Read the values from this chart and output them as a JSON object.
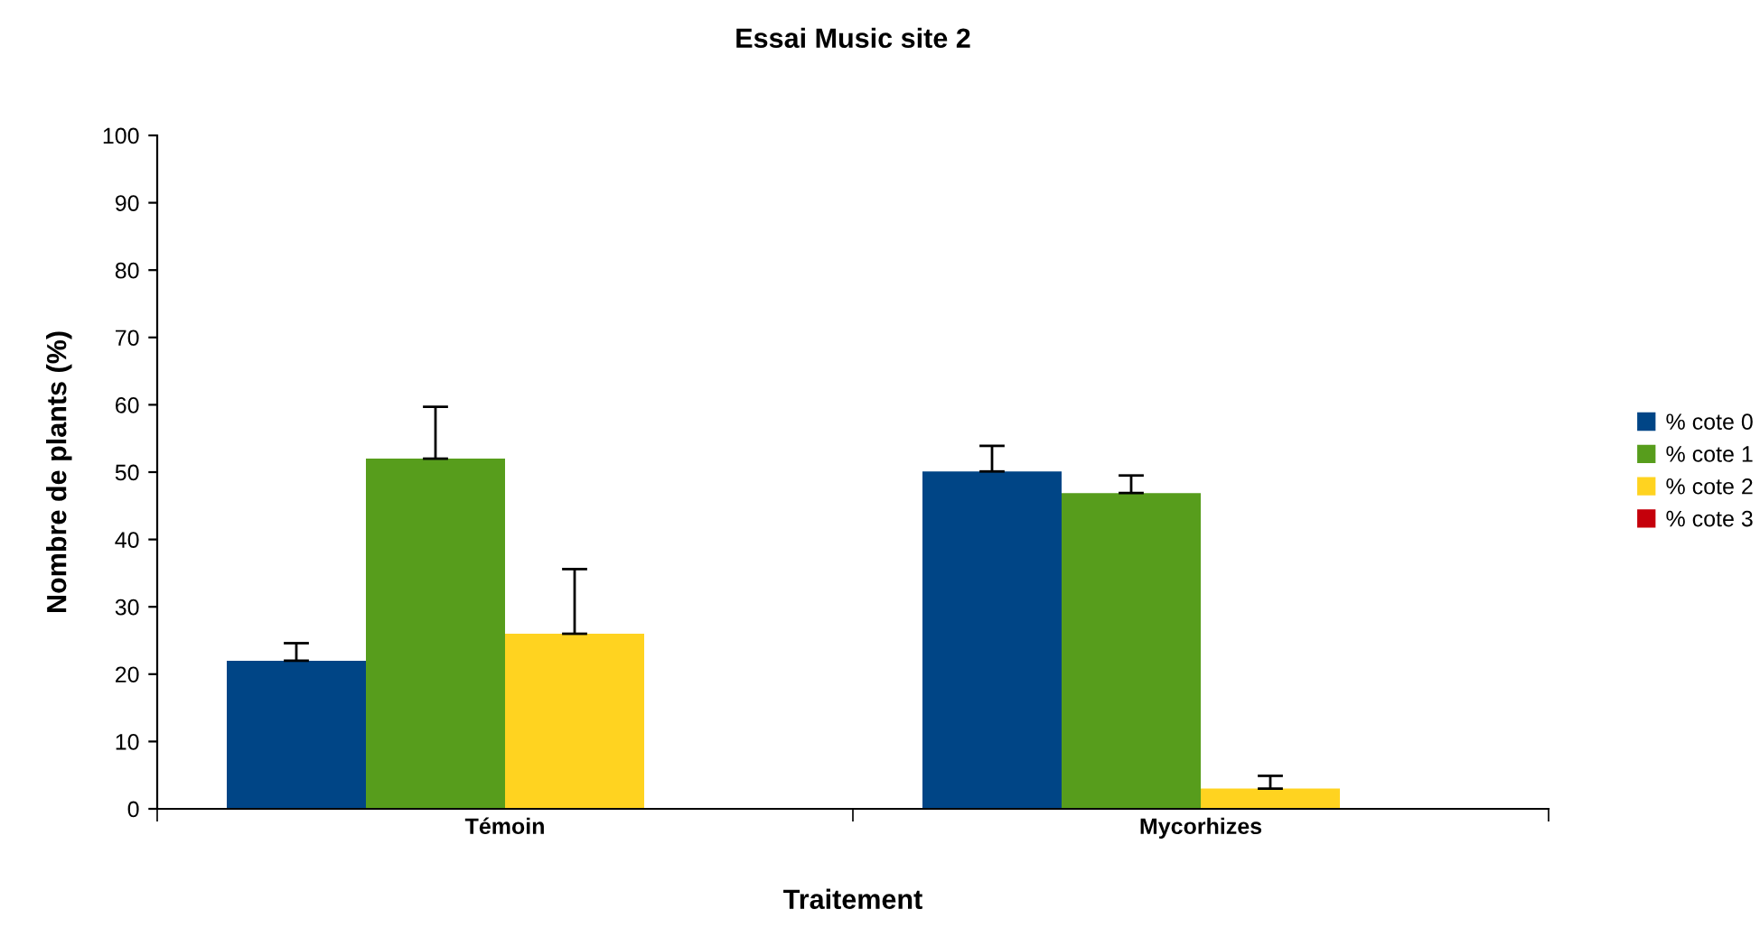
{
  "chart_data": {
    "type": "bar",
    "title": "Essai Music site 2",
    "xlabel": "Traitement",
    "ylabel": "Nombre de plants (%)",
    "categories": [
      "Témoin",
      "Mycorhizes"
    ],
    "series": [
      {
        "name": "% cote 0",
        "color": "#004586",
        "values": [
          22,
          50.1
        ],
        "errors": [
          [
            22,
            24.6
          ],
          [
            50.1,
            53.9
          ]
        ]
      },
      {
        "name": "% cote 1",
        "color": "#579d1c",
        "values": [
          52,
          46.9
        ],
        "errors": [
          [
            52,
            59.7
          ],
          [
            46.9,
            49.5
          ]
        ]
      },
      {
        "name": "% cote 2",
        "color": "#ffd320",
        "values": [
          26,
          3
        ],
        "errors": [
          [
            26,
            35.6
          ],
          [
            3,
            4.9
          ]
        ]
      },
      {
        "name": "% cote 3",
        "color": "#c5000b",
        "values": [
          0,
          0
        ],
        "errors": [
          null,
          null
        ]
      }
    ],
    "ylim": [
      0,
      100
    ],
    "yticks": [
      0,
      10,
      20,
      30,
      40,
      50,
      60,
      70,
      80,
      90,
      100
    ],
    "grid": false,
    "legend": "right"
  }
}
